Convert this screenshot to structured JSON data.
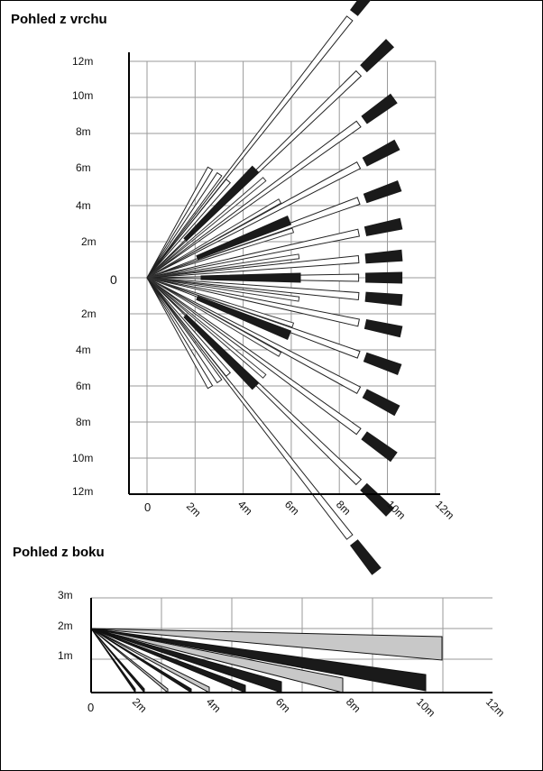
{
  "top_view": {
    "title": "Pohled z vrchu",
    "origin_label": "0",
    "y_labels": [
      "12m",
      "10m",
      "8m",
      "6m",
      "4m",
      "2m",
      "2m",
      "4m",
      "6m",
      "8m",
      "10m",
      "12m"
    ],
    "x_labels": [
      "0",
      "2m",
      "4m",
      "6m",
      "8m",
      "10m",
      "12m"
    ]
  },
  "side_view": {
    "title": "Pohled z boku",
    "y_labels": [
      "3m",
      "2m",
      "1m"
    ],
    "x_labels": [
      "0",
      "2m",
      "4m",
      "6m",
      "8m",
      "10m",
      "12m"
    ]
  },
  "colors": {
    "beam_dark": "#1a1a1a",
    "beam_light": "#c8c8c8",
    "grid": "#9a9a9a"
  }
}
